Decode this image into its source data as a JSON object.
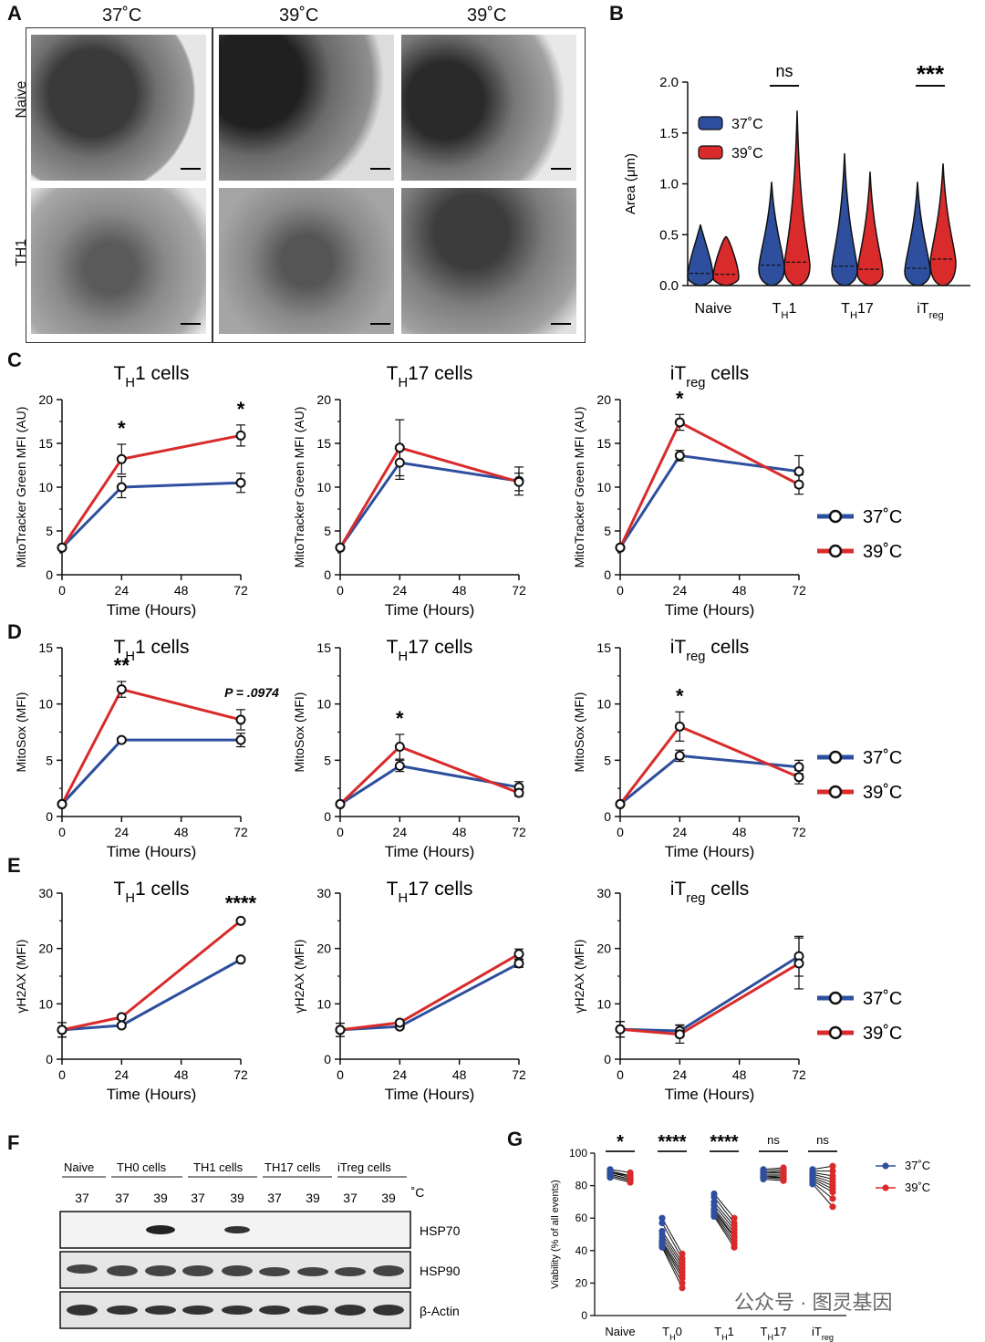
{
  "panels": {
    "A": "A",
    "B": "B",
    "C": "C",
    "D": "D",
    "E": "E",
    "F": "F",
    "G": "G"
  },
  "colors": {
    "c37": "#2e4f9e",
    "c39": "#d92b2b",
    "black": "#111111"
  },
  "panelA": {
    "col_labels": [
      "37˚C",
      "39˚C",
      "39˚C"
    ],
    "row_labels": [
      "Naive",
      "TH1"
    ]
  },
  "legend37": "37˚C",
  "legend39": "39˚C",
  "watermark": "公众号 · 图灵基因",
  "chart_data": [
    {
      "id": "B",
      "type": "violin",
      "ylabel": "Area (μm)",
      "ylim": [
        0,
        2.0
      ],
      "yticks": [
        "0.0",
        "0.5",
        "1.0",
        "1.5",
        "2.0"
      ],
      "categories": [
        "Naive",
        "TH1",
        "TH17",
        "iTreg"
      ],
      "series": [
        {
          "name": "37˚C",
          "max": [
            0.6,
            1.02,
            1.3,
            1.02
          ],
          "median": [
            0.12,
            0.2,
            0.19,
            0.17
          ]
        },
        {
          "name": "39˚C",
          "max": [
            0.48,
            1.72,
            1.12,
            1.2
          ],
          "median": [
            0.11,
            0.23,
            0.16,
            0.26
          ]
        }
      ],
      "annotations": [
        {
          "category": "TH1",
          "text": "ns"
        },
        {
          "category": "iTreg",
          "text": "***"
        }
      ]
    },
    {
      "id": "C1",
      "type": "line",
      "title": "TH1 cells",
      "ylabel": "MitoTracker Green MFI (AU)",
      "xlabel": "Time (Hours)",
      "x": [
        0,
        24,
        72
      ],
      "xticks": [
        "0",
        "24",
        "48",
        "72"
      ],
      "ylim": [
        0,
        20
      ],
      "yticks": [
        "0",
        "5",
        "10",
        "15",
        "20"
      ],
      "series": [
        {
          "name": "37˚C",
          "values": [
            3.1,
            10.0,
            10.5
          ],
          "err": [
            0,
            1.2,
            1.1
          ]
        },
        {
          "name": "39˚C",
          "values": [
            3.1,
            13.2,
            15.9
          ],
          "err": [
            0,
            1.7,
            1.2
          ]
        }
      ],
      "annotations": [
        {
          "x": 24,
          "text": "*"
        },
        {
          "x": 72,
          "text": "*"
        }
      ]
    },
    {
      "id": "C2",
      "type": "line",
      "title": "TH17 cells",
      "ylabel": "MitoTracker Green MFI (AU)",
      "xlabel": "Time (Hours)",
      "x": [
        0,
        24,
        72
      ],
      "xticks": [
        "0",
        "24",
        "48",
        "72"
      ],
      "ylim": [
        0,
        20
      ],
      "yticks": [
        "0",
        "5",
        "10",
        "15",
        "20"
      ],
      "series": [
        {
          "name": "37˚C",
          "values": [
            3.1,
            12.8,
            10.7
          ],
          "err": [
            0,
            1.9,
            1.6
          ]
        },
        {
          "name": "39˚C",
          "values": [
            3.1,
            14.5,
            10.6
          ],
          "err": [
            0,
            3.2,
            1.0
          ]
        }
      ],
      "annotations": []
    },
    {
      "id": "C3",
      "type": "line",
      "title": "iTreg cells",
      "ylabel": "MitoTracker Green MFI (AU)",
      "xlabel": "Time (Hours)",
      "x": [
        0,
        24,
        72
      ],
      "xticks": [
        "0",
        "24",
        "48",
        "72"
      ],
      "ylim": [
        0,
        20
      ],
      "yticks": [
        "0",
        "5",
        "10",
        "15",
        "20"
      ],
      "series": [
        {
          "name": "37˚C",
          "values": [
            3.1,
            13.6,
            11.8
          ],
          "err": [
            0,
            0.6,
            1.8
          ]
        },
        {
          "name": "39˚C",
          "values": [
            3.1,
            17.4,
            10.3
          ],
          "err": [
            0,
            0.9,
            1.1
          ]
        }
      ],
      "annotations": [
        {
          "x": 24,
          "text": "*"
        }
      ]
    },
    {
      "id": "D1",
      "type": "line",
      "title": "TH1 cells",
      "ylabel": "MitoSox (MFI)",
      "xlabel": "Time (Hours)",
      "x": [
        0,
        24,
        72
      ],
      "xticks": [
        "0",
        "24",
        "48",
        "72"
      ],
      "ylim": [
        0,
        15
      ],
      "yticks": [
        "0",
        "5",
        "10",
        "15"
      ],
      "series": [
        {
          "name": "37˚C",
          "values": [
            1.1,
            6.8,
            6.8
          ],
          "err": [
            0,
            0.2,
            0.6
          ]
        },
        {
          "name": "39˚C",
          "values": [
            1.1,
            11.3,
            8.6
          ],
          "err": [
            0,
            0.7,
            0.9
          ]
        }
      ],
      "annotations": [
        {
          "x": 24,
          "text": "**"
        },
        {
          "x": 72,
          "text": "P = .0974"
        }
      ]
    },
    {
      "id": "D2",
      "type": "line",
      "title": "TH17 cells",
      "ylabel": "MitoSox (MFI)",
      "xlabel": "Time (Hours)",
      "x": [
        0,
        24,
        72
      ],
      "xticks": [
        "0",
        "24",
        "48",
        "72"
      ],
      "ylim": [
        0,
        15
      ],
      "yticks": [
        "0",
        "5",
        "10",
        "15"
      ],
      "series": [
        {
          "name": "37˚C",
          "values": [
            1.1,
            4.5,
            2.6
          ],
          "err": [
            0,
            0.5,
            0.5
          ]
        },
        {
          "name": "39˚C",
          "values": [
            1.1,
            6.2,
            2.1
          ],
          "err": [
            0,
            1.1,
            0.3
          ]
        }
      ],
      "annotations": [
        {
          "x": 24,
          "text": "*"
        }
      ]
    },
    {
      "id": "D3",
      "type": "line",
      "title": "iTreg cells",
      "ylabel": "MitoSox (MFI)",
      "xlabel": "Time (Hours)",
      "x": [
        0,
        24,
        72
      ],
      "xticks": [
        "0",
        "24",
        "48",
        "72"
      ],
      "ylim": [
        0,
        15
      ],
      "yticks": [
        "0",
        "5",
        "10",
        "15"
      ],
      "series": [
        {
          "name": "37˚C",
          "values": [
            1.1,
            5.4,
            4.4
          ],
          "err": [
            0,
            0.5,
            0.6
          ]
        },
        {
          "name": "39˚C",
          "values": [
            1.1,
            8.0,
            3.5
          ],
          "err": [
            0,
            1.3,
            0.6
          ]
        }
      ],
      "annotations": [
        {
          "x": 24,
          "text": "*"
        }
      ]
    },
    {
      "id": "E1",
      "type": "line",
      "title": "TH1 cells",
      "ylabel": "γH2AX (MFI)",
      "xlabel": "Time (Hours)",
      "x": [
        0,
        24,
        72
      ],
      "xticks": [
        "0",
        "24",
        "48",
        "72"
      ],
      "ylim": [
        0,
        30
      ],
      "yticks": [
        "0",
        "10",
        "20",
        "30"
      ],
      "series": [
        {
          "name": "37˚C",
          "values": [
            5.3,
            6.1,
            18.0
          ],
          "err": [
            1.3,
            0.4,
            0.3
          ]
        },
        {
          "name": "39˚C",
          "values": [
            5.3,
            7.6,
            25.0
          ],
          "err": [
            1.3,
            0.4,
            0.3
          ]
        }
      ],
      "annotations": [
        {
          "x": 72,
          "text": "****"
        }
      ]
    },
    {
      "id": "E2",
      "type": "line",
      "title": "TH17 cells",
      "ylabel": "γH2AX (MFI)",
      "xlabel": "Time (Hours)",
      "x": [
        0,
        24,
        72
      ],
      "xticks": [
        "0",
        "24",
        "48",
        "72"
      ],
      "ylim": [
        0,
        30
      ],
      "yticks": [
        "0",
        "10",
        "20",
        "30"
      ],
      "series": [
        {
          "name": "37˚C",
          "values": [
            5.3,
            5.9,
            17.3
          ],
          "err": [
            1.2,
            0.4,
            0.7
          ]
        },
        {
          "name": "39˚C",
          "values": [
            5.3,
            6.6,
            19.0
          ],
          "err": [
            1.2,
            0.4,
            0.9
          ]
        }
      ],
      "annotations": []
    },
    {
      "id": "E3",
      "type": "line",
      "title": "iTreg cells",
      "ylabel": "γH2AX (MFI)",
      "xlabel": "Time (Hours)",
      "x": [
        0,
        24,
        72
      ],
      "xticks": [
        "0",
        "24",
        "48",
        "72"
      ],
      "ylim": [
        0,
        30
      ],
      "yticks": [
        "0",
        "10",
        "20",
        "30"
      ],
      "series": [
        {
          "name": "37˚C",
          "values": [
            5.4,
            5.1,
            18.6
          ],
          "err": [
            1.4,
            1.1,
            3.6
          ]
        },
        {
          "name": "39˚C",
          "values": [
            5.4,
            4.5,
            17.3
          ],
          "err": [
            1.4,
            1.6,
            4.6
          ]
        }
      ],
      "annotations": []
    },
    {
      "id": "G",
      "type": "scatter",
      "ylabel": "Viability (% of all events)",
      "ylim": [
        0,
        100
      ],
      "yticks": [
        "0",
        "20",
        "40",
        "60",
        "80",
        "100"
      ],
      "categories": [
        "Naive",
        "TH0",
        "TH1",
        "TH17",
        "iTreg"
      ],
      "series": [
        {
          "name": "37˚C",
          "values": [
            [
              89,
              87,
              86,
              88,
              90,
              85,
              88,
              87,
              86,
              89
            ],
            [
              60,
              57,
              52,
              50,
              48,
              46,
              45,
              44,
              43,
              42
            ],
            [
              75,
              73,
              70,
              68,
              66,
              65,
              64,
              63,
              62,
              61
            ],
            [
              90,
              89,
              88,
              88,
              87,
              86,
              86,
              85,
              85,
              84
            ],
            [
              90,
              89,
              88,
              87,
              86,
              85,
              84,
              83,
              82,
              81
            ]
          ]
        },
        {
          "name": "39˚C",
          "values": [
            [
              86,
              84,
              83,
              85,
              88,
              82,
              86,
              84,
              83,
              86
            ],
            [
              38,
              35,
              33,
              31,
              29,
              27,
              25,
              23,
              20,
              17
            ],
            [
              60,
              57,
              55,
              53,
              51,
              49,
              48,
              46,
              44,
              42
            ],
            [
              91,
              90,
              89,
              88,
              87,
              86,
              85,
              85,
              84,
              83
            ],
            [
              92,
              89,
              86,
              84,
              82,
              80,
              78,
              76,
              72,
              67
            ]
          ]
        }
      ],
      "annotations": [
        {
          "category": "Naive",
          "text": "*"
        },
        {
          "category": "TH0",
          "text": "****"
        },
        {
          "category": "TH1",
          "text": "****"
        },
        {
          "category": "TH17",
          "text": "ns"
        },
        {
          "category": "iTreg",
          "text": "ns"
        }
      ]
    }
  ],
  "panelF": {
    "groups": [
      "Naive",
      "TH0 cells",
      "TH1 cells",
      "TH17 cells",
      "iTreg cells"
    ],
    "temps": [
      "37",
      "37",
      "39",
      "37",
      "39",
      "37",
      "39",
      "37",
      "39"
    ],
    "unit": "˚C",
    "blots": [
      "HSP70",
      "HSP90",
      "β-Actin"
    ]
  }
}
